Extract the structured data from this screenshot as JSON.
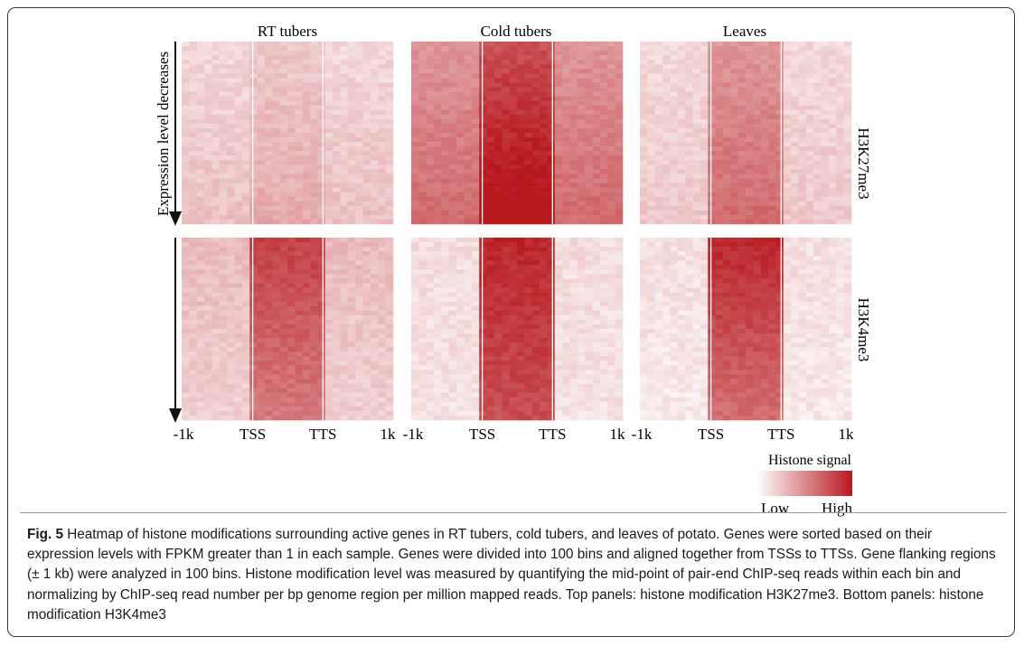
{
  "figure": {
    "label": "Fig. 5",
    "caption": "Heatmap of histone modifications surrounding active genes in RT tubers, cold tubers, and leaves of potato. Genes were sorted based on their expression levels with FPKM greater than 1 in each sample. Genes were divided into 100 bins and aligned together from TSSs to TTSs. Gene flanking regions (± 1 kb) were analyzed in 100 bins. Histone modification level was measured by quantifying the mid-point of pair-end ChIP-seq reads within each bin and normalizing by ChIP-seq read number per bp genome region per million mapped reads. Top panels: histone modification H3K27me3. Bottom panels: histone modification H3K4me3"
  },
  "chart_data": {
    "type": "heatmap",
    "columns": [
      "RT tubers",
      "Cold tubers",
      "Leaves"
    ],
    "rows": [
      "H3K27me3",
      "H3K4me3"
    ],
    "y_axis_label": "Expression level decreases",
    "x_ticks": [
      "-1k",
      "TSS",
      "TTS",
      "1k"
    ],
    "legend": {
      "title": "Histone signal",
      "low": "Low",
      "high": "High",
      "colors": [
        "#ffffff",
        "#b7181e"
      ]
    },
    "panels": [
      {
        "row": "H3K27me3",
        "column": "RT tubers",
        "flank_signal": 0.22,
        "body_signal": 0.3,
        "gradient": 0.45
      },
      {
        "row": "H3K27me3",
        "column": "Cold tubers",
        "flank_signal": 0.55,
        "body_signal": 0.92,
        "gradient": 0.35
      },
      {
        "row": "H3K27me3",
        "column": "Leaves",
        "flank_signal": 0.2,
        "body_signal": 0.55,
        "gradient": 0.35
      },
      {
        "row": "H3K4me3",
        "column": "RT tubers",
        "flank_signal": 0.25,
        "body_signal": 0.7,
        "gradient": -0.35
      },
      {
        "row": "H3K4me3",
        "column": "Cold tubers",
        "flank_signal": 0.14,
        "body_signal": 0.85,
        "gradient": -0.2
      },
      {
        "row": "H3K4me3",
        "column": "Leaves",
        "flank_signal": 0.12,
        "body_signal": 0.78,
        "gradient": -0.4
      }
    ]
  }
}
